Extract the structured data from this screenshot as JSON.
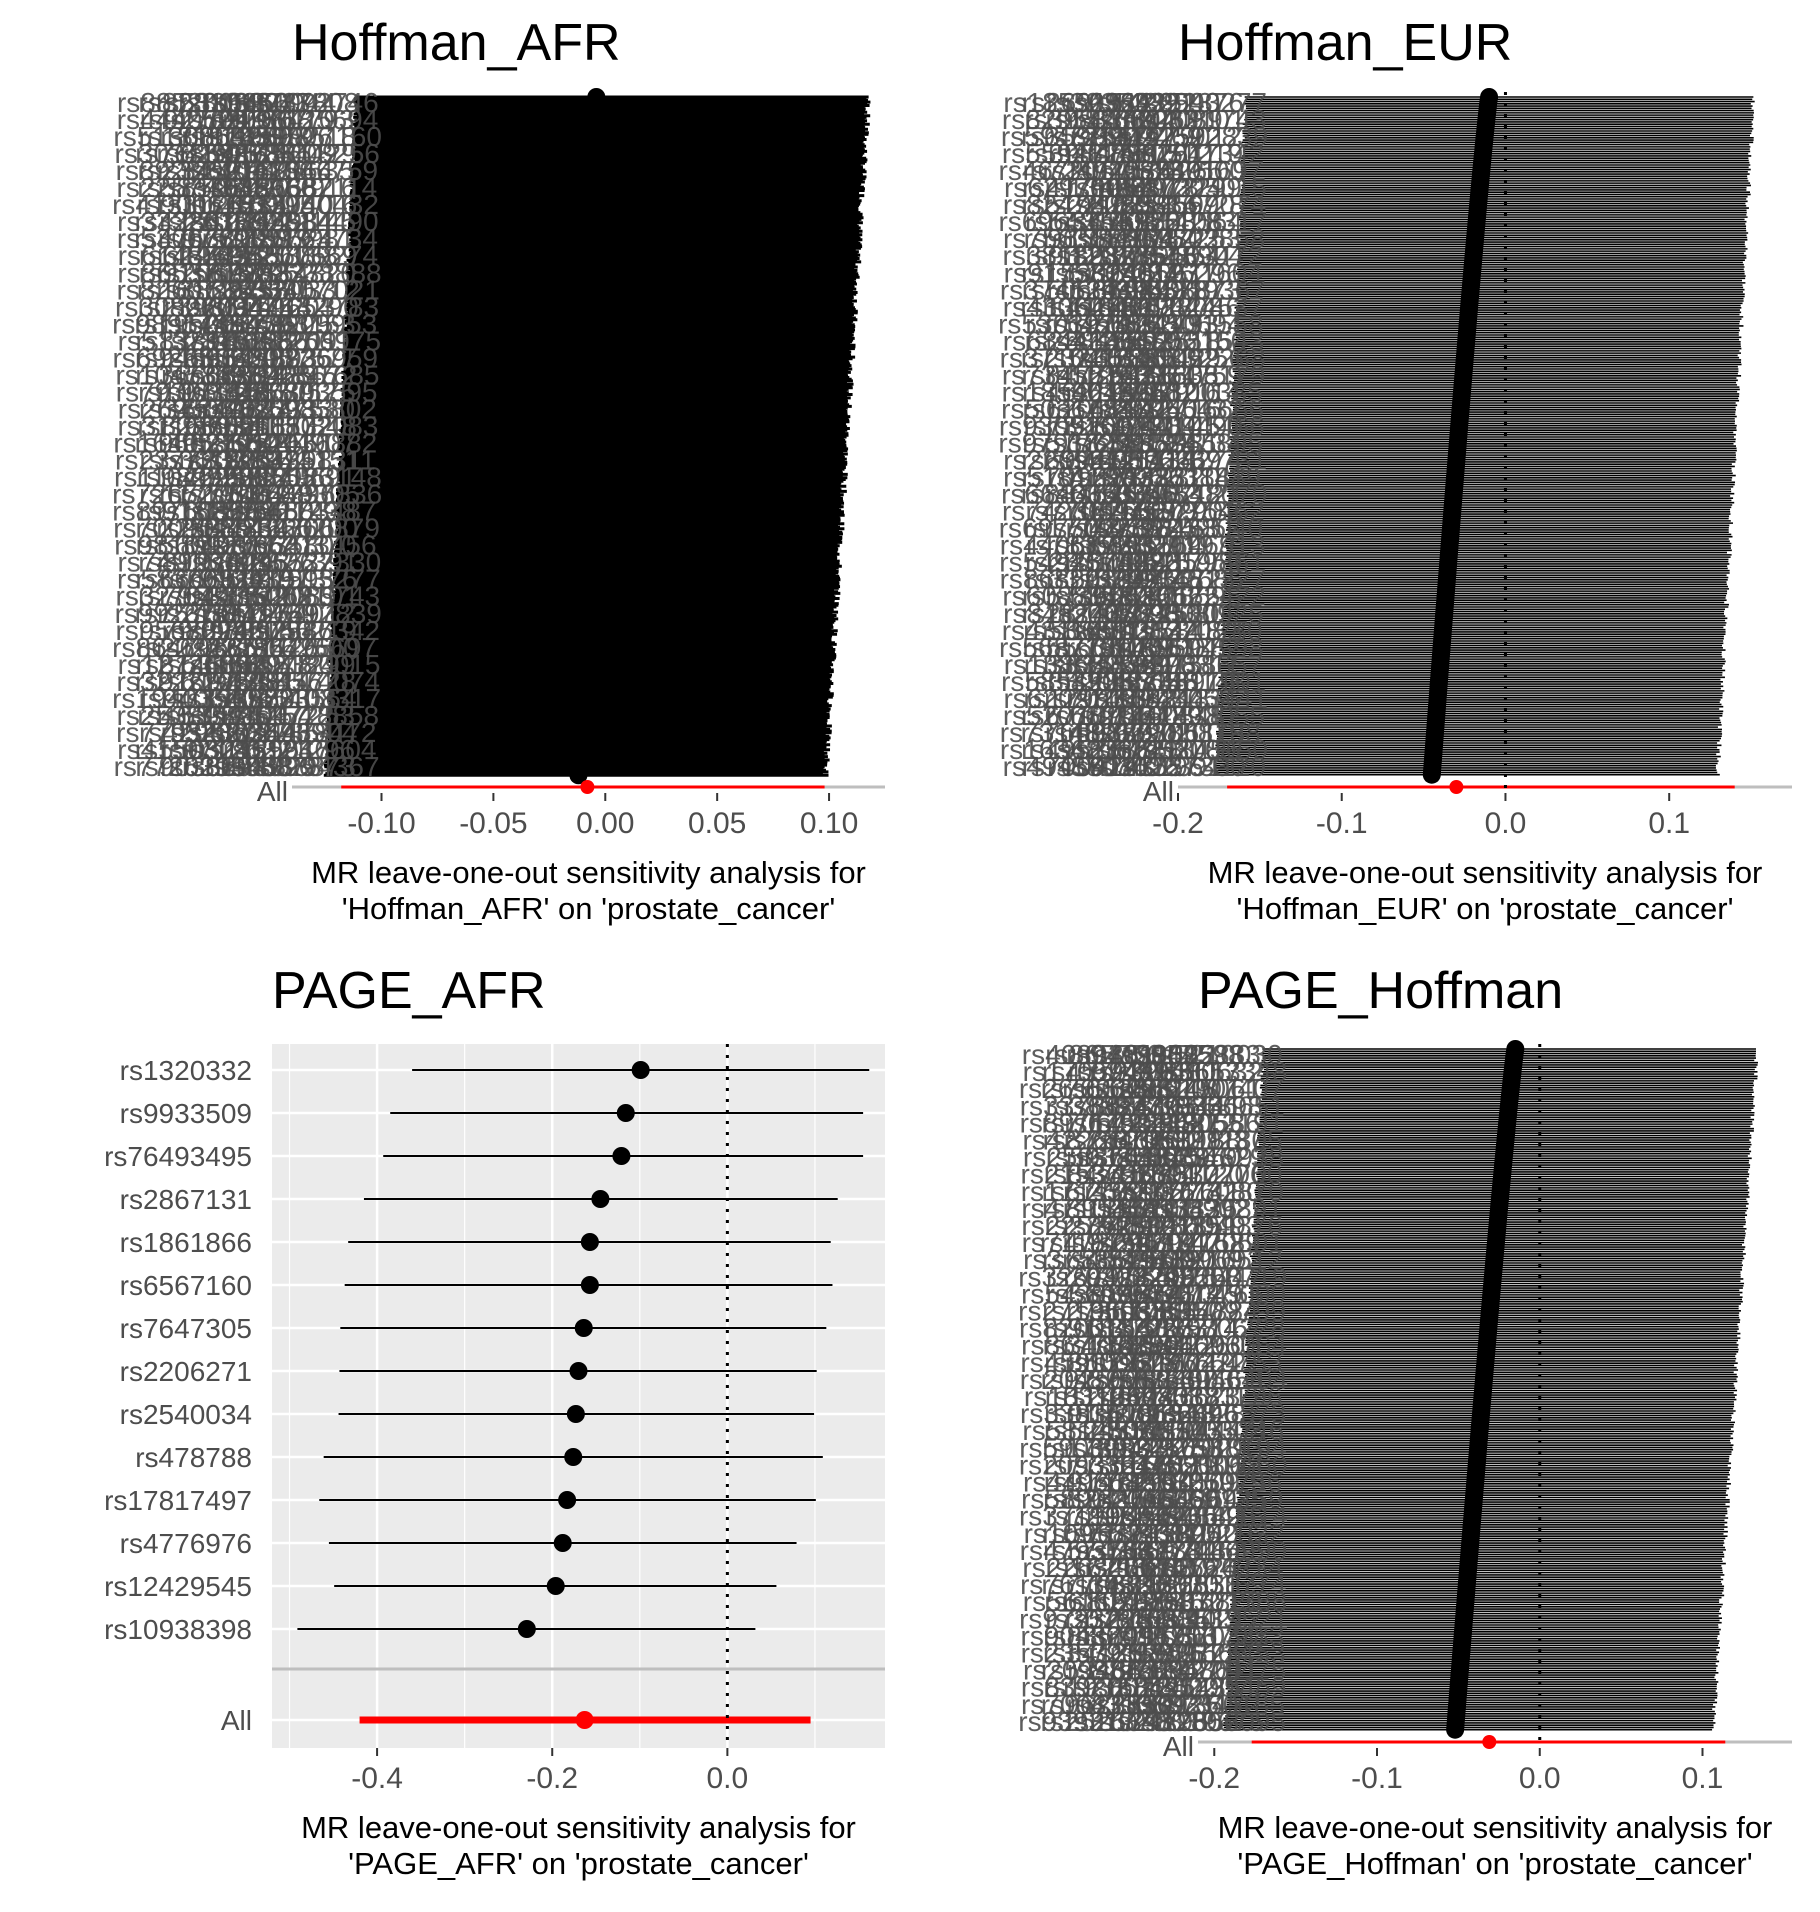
{
  "chart_data": [
    {
      "type": "forest",
      "title": "Hoffman_AFR",
      "xlabel": "MR leave-one-out sensitivity analysis for\n'Hoffman_AFR' on 'prostate_cancer'",
      "xlim": [
        -0.14,
        0.125
      ],
      "xticks": [
        -0.1,
        -0.05,
        0.0,
        0.05,
        0.1
      ],
      "xtick_labels": [
        "-0.10",
        "-0.05",
        "0.00",
        "0.05",
        "0.10"
      ],
      "overplotted": true,
      "n_snps_approx": 400,
      "snp_b_range": [
        -0.012,
        -0.004
      ],
      "snp_lo_range": [
        -0.126,
        -0.111
      ],
      "snp_hi_range": [
        0.097,
        0.116
      ],
      "snp_labels_visible": [
        "rs…",
        "rs…"
      ],
      "all": {
        "label": "All",
        "b": -0.008,
        "lo": -0.118,
        "hi": 0.098
      },
      "grid": false,
      "background": "#ffffff",
      "bar_color": "#000000",
      "all_color": "#ff0000"
    },
    {
      "type": "forest",
      "title": "Hoffman_EUR",
      "xlabel": "MR leave-one-out sensitivity analysis for\n'Hoffman_EUR' on 'prostate_cancer'",
      "xlim": [
        -0.2,
        0.175
      ],
      "xticks": [
        -0.2,
        -0.1,
        0.0,
        0.1
      ],
      "xtick_labels": [
        "-0.2",
        "-0.1",
        "0.0",
        "0.1"
      ],
      "overplotted": true,
      "n_snps_approx": 300,
      "snp_b_range": [
        -0.045,
        -0.01
      ],
      "snp_lo_range": [
        -0.178,
        -0.158
      ],
      "snp_hi_range": [
        0.128,
        0.15
      ],
      "all": {
        "label": "All",
        "b": -0.03,
        "lo": -0.17,
        "hi": 0.14
      },
      "refline": 0,
      "grid": false,
      "background": "#ffffff",
      "bar_color": "#000000",
      "all_color": "#ff0000"
    },
    {
      "type": "forest",
      "title": "PAGE_AFR",
      "xlabel": "MR leave-one-out sensitivity analysis for\n'PAGE_AFR' on 'prostate_cancer'",
      "xlim": [
        -0.52,
        0.18
      ],
      "xticks": [
        -0.4,
        -0.2,
        0.0
      ],
      "xtick_labels": [
        "-0.4",
        "-0.2",
        "0.0"
      ],
      "overplotted": false,
      "snps": [
        {
          "label": "rs1320332",
          "b": -0.099,
          "lo": -0.36,
          "hi": 0.162
        },
        {
          "label": "rs9933509",
          "b": -0.116,
          "lo": -0.385,
          "hi": 0.155
        },
        {
          "label": "rs76493495",
          "b": -0.121,
          "lo": -0.393,
          "hi": 0.155
        },
        {
          "label": "rs2867131",
          "b": -0.145,
          "lo": -0.415,
          "hi": 0.126
        },
        {
          "label": "rs1861866",
          "b": -0.157,
          "lo": -0.433,
          "hi": 0.118
        },
        {
          "label": "rs6567160",
          "b": -0.157,
          "lo": -0.437,
          "hi": 0.12
        },
        {
          "label": "rs7647305",
          "b": -0.164,
          "lo": -0.442,
          "hi": 0.113
        },
        {
          "label": "rs2206271",
          "b": -0.17,
          "lo": -0.443,
          "hi": 0.102
        },
        {
          "label": "rs2540034",
          "b": -0.173,
          "lo": -0.444,
          "hi": 0.099
        },
        {
          "label": "rs478788",
          "b": -0.176,
          "lo": -0.461,
          "hi": 0.109
        },
        {
          "label": "rs17817497",
          "b": -0.183,
          "lo": -0.466,
          "hi": 0.101
        },
        {
          "label": "rs4776976",
          "b": -0.188,
          "lo": -0.455,
          "hi": 0.079
        },
        {
          "label": "rs12429545",
          "b": -0.196,
          "lo": -0.449,
          "hi": 0.056
        },
        {
          "label": "rs10938398",
          "b": -0.229,
          "lo": -0.491,
          "hi": 0.032
        }
      ],
      "all": {
        "label": "All",
        "b": -0.163,
        "lo": -0.42,
        "hi": 0.095
      },
      "refline": 0,
      "grid": true,
      "background": "#ebebeb",
      "bar_color": "#000000",
      "all_color": "#ff0000"
    },
    {
      "type": "forest",
      "title": "PAGE_Hoffman",
      "xlabel": "MR leave-one-out sensitivity analysis for\n'PAGE_Hoffman' on 'prostate_cancer'",
      "xlim": [
        -0.21,
        0.155
      ],
      "xticks": [
        -0.2,
        -0.1,
        0.0,
        0.1
      ],
      "xtick_labels": [
        "-0.2",
        "-0.1",
        "0.0",
        "0.1"
      ],
      "overplotted": true,
      "n_snps_approx": 300,
      "snp_b_range": [
        -0.052,
        -0.015
      ],
      "snp_lo_range": [
        -0.195,
        -0.168
      ],
      "snp_hi_range": [
        0.105,
        0.132
      ],
      "all": {
        "label": "All",
        "b": -0.031,
        "lo": -0.177,
        "hi": 0.114
      },
      "refline": 0,
      "grid": false,
      "background": "#ffffff",
      "bar_color": "#000000",
      "all_color": "#ff0000"
    }
  ]
}
